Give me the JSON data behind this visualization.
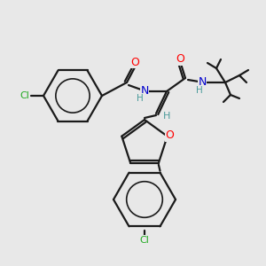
{
  "background_color": "#e8e8e8",
  "bond_color": "#1a1a1a",
  "atom_colors": {
    "O": "#ff0000",
    "N": "#0000cd",
    "Cl": "#22aa22",
    "H": "#4a9a9a",
    "C": "#1a1a1a"
  },
  "figsize": [
    3.0,
    3.0
  ],
  "dpi": 100
}
